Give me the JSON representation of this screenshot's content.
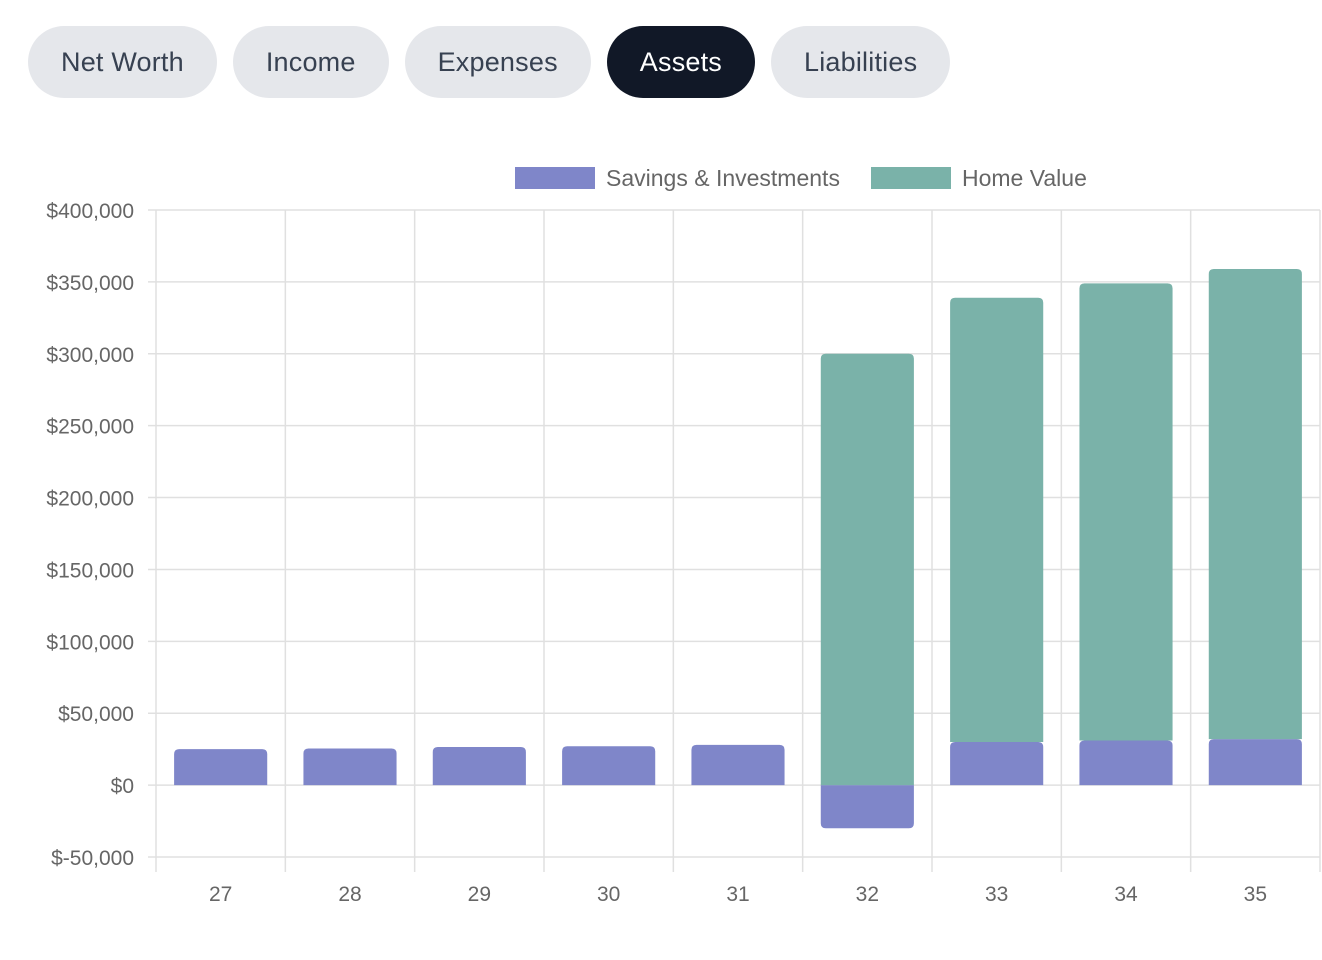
{
  "tabs": [
    {
      "label": "Net Worth",
      "active": false
    },
    {
      "label": "Income",
      "active": false
    },
    {
      "label": "Expenses",
      "active": false
    },
    {
      "label": "Assets",
      "active": true
    },
    {
      "label": "Liabilities",
      "active": false
    }
  ],
  "colors": {
    "savings": "#7f86c9",
    "home": "#7ab2a9",
    "grid": "#e0e0e0",
    "tab_bg": "#e5e7eb",
    "tab_active_bg": "#111827"
  },
  "chart_data": {
    "type": "bar",
    "stacked": true,
    "categories": [
      "27",
      "28",
      "29",
      "30",
      "31",
      "32",
      "33",
      "34",
      "35"
    ],
    "series": [
      {
        "name": "Savings & Investments",
        "values": [
          25000,
          25500,
          26500,
          27000,
          28000,
          -30000,
          30000,
          31000,
          32000
        ]
      },
      {
        "name": "Home Value",
        "values": [
          0,
          0,
          0,
          0,
          0,
          300000,
          309000,
          318000,
          327000
        ]
      }
    ],
    "y_ticks": [
      "$400,000",
      "$350,000",
      "$300,000",
      "$250,000",
      "$200,000",
      "$150,000",
      "$100,000",
      "$50,000",
      "$0",
      "$-50,000"
    ],
    "ylim": [
      -50000,
      400000
    ],
    "grid": true,
    "legend": "top"
  }
}
